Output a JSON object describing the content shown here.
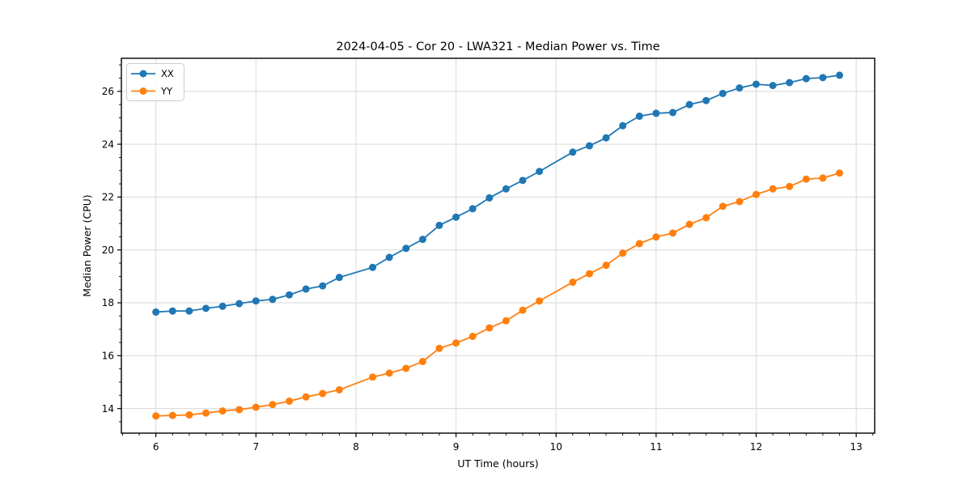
{
  "chart_data": {
    "type": "line",
    "title": "2024-04-05 - Cor 20 - LWA321 - Median Power vs. Time",
    "xlabel": "UT Time (hours)",
    "ylabel": "Median Power (CPU)",
    "x": [
      6.0,
      6.1667,
      6.3333,
      6.5,
      6.6667,
      6.8333,
      7.0,
      7.1667,
      7.3333,
      7.5,
      7.6667,
      7.8333,
      8.1667,
      8.3333,
      8.5,
      8.6667,
      8.8333,
      9.0,
      9.1667,
      9.3333,
      9.5,
      9.6667,
      9.8333,
      10.1667,
      10.3333,
      10.5,
      10.6667,
      10.8333,
      11.0,
      11.1667,
      11.3333,
      11.5,
      11.6667,
      11.8333,
      12.0,
      12.1667,
      12.3333,
      12.5,
      12.6667,
      12.8333
    ],
    "series": [
      {
        "name": "XX",
        "color": "#1f77b4",
        "values": [
          17.65,
          17.69,
          17.69,
          17.79,
          17.87,
          17.97,
          18.07,
          18.13,
          18.3,
          18.52,
          18.64,
          18.96,
          19.34,
          19.72,
          20.06,
          20.4,
          20.93,
          21.24,
          21.56,
          21.97,
          22.31,
          22.63,
          22.97,
          23.7,
          23.94,
          24.24,
          24.7,
          25.06,
          25.17,
          25.2,
          25.5,
          25.65,
          25.92,
          26.13,
          26.27,
          26.22,
          26.33,
          26.48,
          26.52,
          26.61
        ]
      },
      {
        "name": "YY",
        "color": "#ff7f0e",
        "values": [
          13.72,
          13.74,
          13.76,
          13.83,
          13.91,
          13.96,
          14.05,
          14.15,
          14.28,
          14.44,
          14.57,
          14.71,
          15.19,
          15.34,
          15.52,
          15.78,
          16.28,
          16.48,
          16.73,
          17.05,
          17.32,
          17.72,
          18.07,
          18.78,
          19.1,
          19.42,
          19.88,
          20.24,
          20.49,
          20.64,
          20.97,
          21.22,
          21.65,
          21.83,
          22.1,
          22.31,
          22.4,
          22.68,
          22.72,
          22.91
        ]
      }
    ],
    "data_gaps_note": "no samples at 8.0 and 10.0 hours",
    "xlim": [
      5.655,
      13.185
    ],
    "ylim": [
      13.07,
      27.25
    ],
    "xticks": [
      6,
      7,
      8,
      9,
      10,
      11,
      12,
      13
    ],
    "yticks": [
      14,
      16,
      18,
      20,
      22,
      24,
      26
    ],
    "x_minor_step": 0.166667,
    "y_minor_step": 0.5,
    "grid": "major",
    "legend_position": "upper-left",
    "marker": "o",
    "colors": {
      "grid": "#d9d9d9",
      "spine": "#000000",
      "background": "#ffffff",
      "legend_border": "#cccccc",
      "legend_background": "#ffffff"
    }
  }
}
